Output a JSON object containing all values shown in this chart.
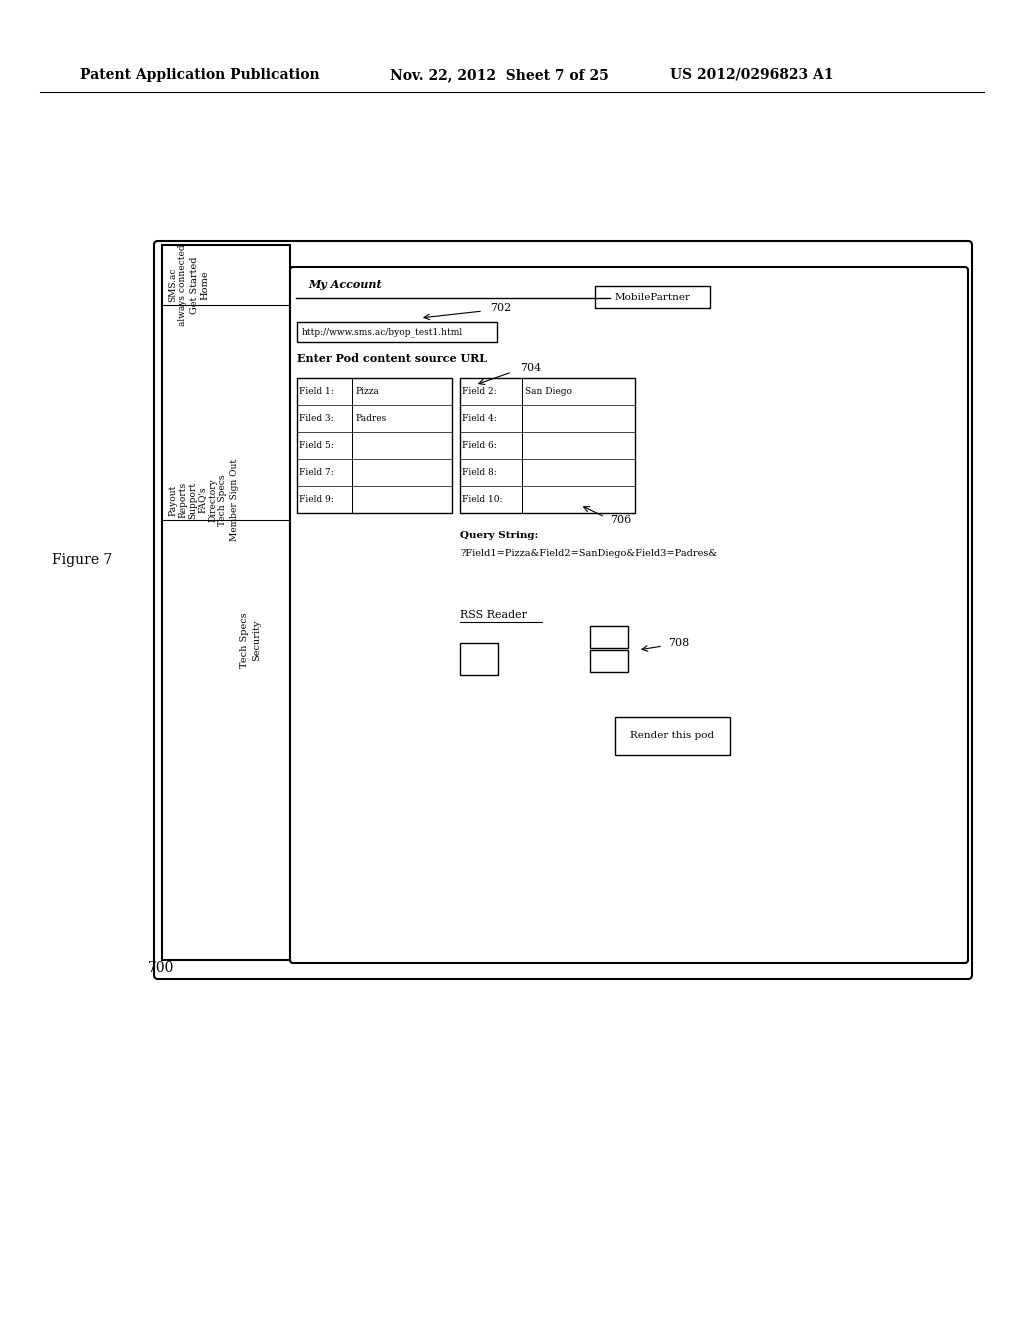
{
  "bg_color": "#ffffff",
  "header_text": "Patent Application Publication",
  "header_date": "Nov. 22, 2012  Sheet 7 of 25",
  "header_patent": "US 2012/0296823 A1",
  "figure_label": "Figure 7",
  "fig_number": "700",
  "nav_items_row1_top": [
    "SMS.ac",
    "always connected"
  ],
  "nav_items_row1_bot": [
    "Get Started",
    "Home"
  ],
  "nav_items_row2": [
    "Payout",
    "Reports",
    "Support",
    "FAQ's",
    "Directory",
    "Tech Specs",
    "Member Sign Out"
  ],
  "nav_items_row3": [
    "Security"
  ],
  "tab_label": "My Account",
  "mobilepartner_label": "MobilePartner",
  "url_label": "Enter Pod content source URL",
  "url_value": "http://www.sms.ac/byop_test1.html",
  "left_fields": [
    "Field 1:",
    "Filed 3:",
    "Field 5:",
    "Field 7:",
    "Field 9:"
  ],
  "left_values": [
    "Pizza",
    "Padres",
    "",
    "",
    ""
  ],
  "right_fields": [
    "Field 2:",
    "Field 4:",
    "Field 6:",
    "Field 8:",
    "Field 10:"
  ],
  "right_values": [
    "San Diego",
    "",
    "",
    "",
    ""
  ],
  "query_string_label": "Query String:",
  "query_string_value": "?Field1=Pizza&Field2=SanDiego&Field3=Padres&",
  "ref_702": "702",
  "ref_704": "704",
  "ref_706": "706",
  "ref_708": "708",
  "rss_reader_label": "RSS Reader",
  "render_pod_label": "Render this pod"
}
